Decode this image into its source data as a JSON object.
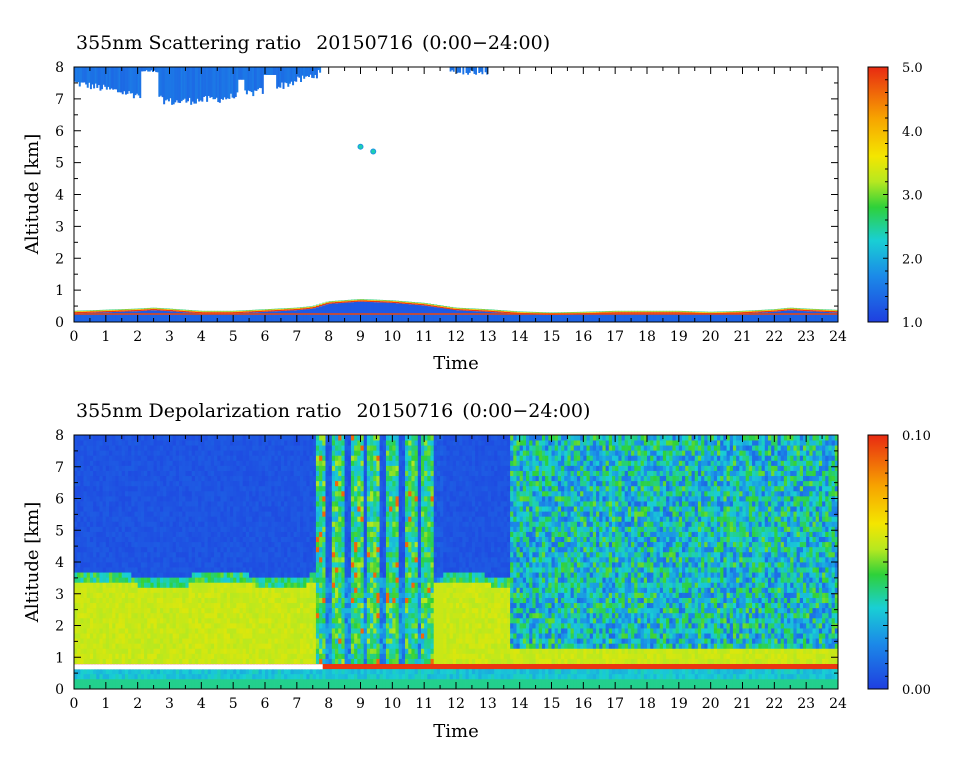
{
  "chart_data": [
    {
      "type": "heatmap",
      "title": "355nm Scattering ratio",
      "date": "20150716",
      "time_range": "(0:00−24:00)",
      "xlabel": "Time",
      "ylabel": "Altitude [km]",
      "xlim": [
        0,
        24
      ],
      "ylim": [
        0,
        8
      ],
      "x_ticks": [
        "0",
        "1",
        "2",
        "3",
        "4",
        "5",
        "6",
        "7",
        "8",
        "9",
        "10",
        "11",
        "12",
        "13",
        "14",
        "15",
        "16",
        "17",
        "18",
        "19",
        "20",
        "21",
        "22",
        "23",
        "24"
      ],
      "y_ticks": [
        "0",
        "1",
        "2",
        "3",
        "4",
        "5",
        "6",
        "7",
        "8"
      ],
      "colorbar": {
        "min": 1.0,
        "max": 5.0,
        "labels": [
          "1.0",
          "2.0",
          "3.0",
          "4.0",
          "5.0"
        ]
      },
      "features": {
        "boundary_layer_top_km": [
          [
            0,
            0.35
          ],
          [
            2,
            0.42
          ],
          [
            2.5,
            0.45
          ],
          [
            3,
            0.42
          ],
          [
            4,
            0.35
          ],
          [
            5,
            0.35
          ],
          [
            6,
            0.4
          ],
          [
            7,
            0.45
          ],
          [
            7.5,
            0.5
          ],
          [
            8,
            0.65
          ],
          [
            9,
            0.72
          ],
          [
            10,
            0.68
          ],
          [
            11,
            0.6
          ],
          [
            12,
            0.45
          ],
          [
            13,
            0.4
          ],
          [
            14,
            0.33
          ],
          [
            15,
            0.3
          ],
          [
            16,
            0.32
          ],
          [
            17,
            0.35
          ],
          [
            18,
            0.35
          ],
          [
            19,
            0.35
          ],
          [
            20,
            0.32
          ],
          [
            21,
            0.35
          ],
          [
            22,
            0.4
          ],
          [
            22.5,
            0.45
          ],
          [
            23,
            0.42
          ],
          [
            24,
            0.38
          ]
        ],
        "upper_cloud": {
          "time_start": 0,
          "time_end": 7.7,
          "base_km": [
            7.5,
            7.2,
            6.9,
            7.0,
            7.3,
            7.8
          ],
          "top_km": 8.0,
          "value": 1.4
        },
        "small_cloud": {
          "time_start": 11.8,
          "time_end": 13.0,
          "base_km": 7.75,
          "top_km": 8.0,
          "value": 1.5
        },
        "isolated_points": [
          [
            9.0,
            5.5
          ],
          [
            9.4,
            5.35
          ]
        ]
      }
    },
    {
      "type": "heatmap",
      "title": "355nm Depolarization ratio",
      "date": "20150716",
      "time_range": "(0:00−24:00)",
      "xlabel": "Time",
      "ylabel": "Altitude [km]",
      "xlim": [
        0,
        24
      ],
      "ylim": [
        0,
        8
      ],
      "x_ticks": [
        "0",
        "1",
        "2",
        "3",
        "4",
        "5",
        "6",
        "7",
        "8",
        "9",
        "10",
        "11",
        "12",
        "13",
        "14",
        "15",
        "16",
        "17",
        "18",
        "19",
        "20",
        "21",
        "22",
        "23",
        "24"
      ],
      "y_ticks": [
        "0",
        "1",
        "2",
        "3",
        "4",
        "5",
        "6",
        "7",
        "8"
      ],
      "colorbar": {
        "min": 0.0,
        "max": 0.1,
        "labels": [
          "0.00",
          "0.10"
        ]
      },
      "features": {
        "dust_layer": {
          "time_start": 0,
          "time_end": 13.7,
          "base_km": 0.8,
          "top_km": 3.3,
          "value": 0.058
        },
        "low_clean_layer": {
          "base_km": 0.1,
          "top_km": 0.6,
          "value": 0.03
        },
        "free_troposphere_morning": {
          "time_start": 0,
          "time_end": 13.7,
          "value": 0.003
        },
        "noisy_region_afternoon": {
          "time_start": 13.7,
          "time_end": 24,
          "mean_value": 0.03
        },
        "convective_columns_hours": [
          7.7,
          8.3,
          8.9,
          9.4,
          10.0,
          10.6,
          11.1
        ]
      }
    }
  ]
}
